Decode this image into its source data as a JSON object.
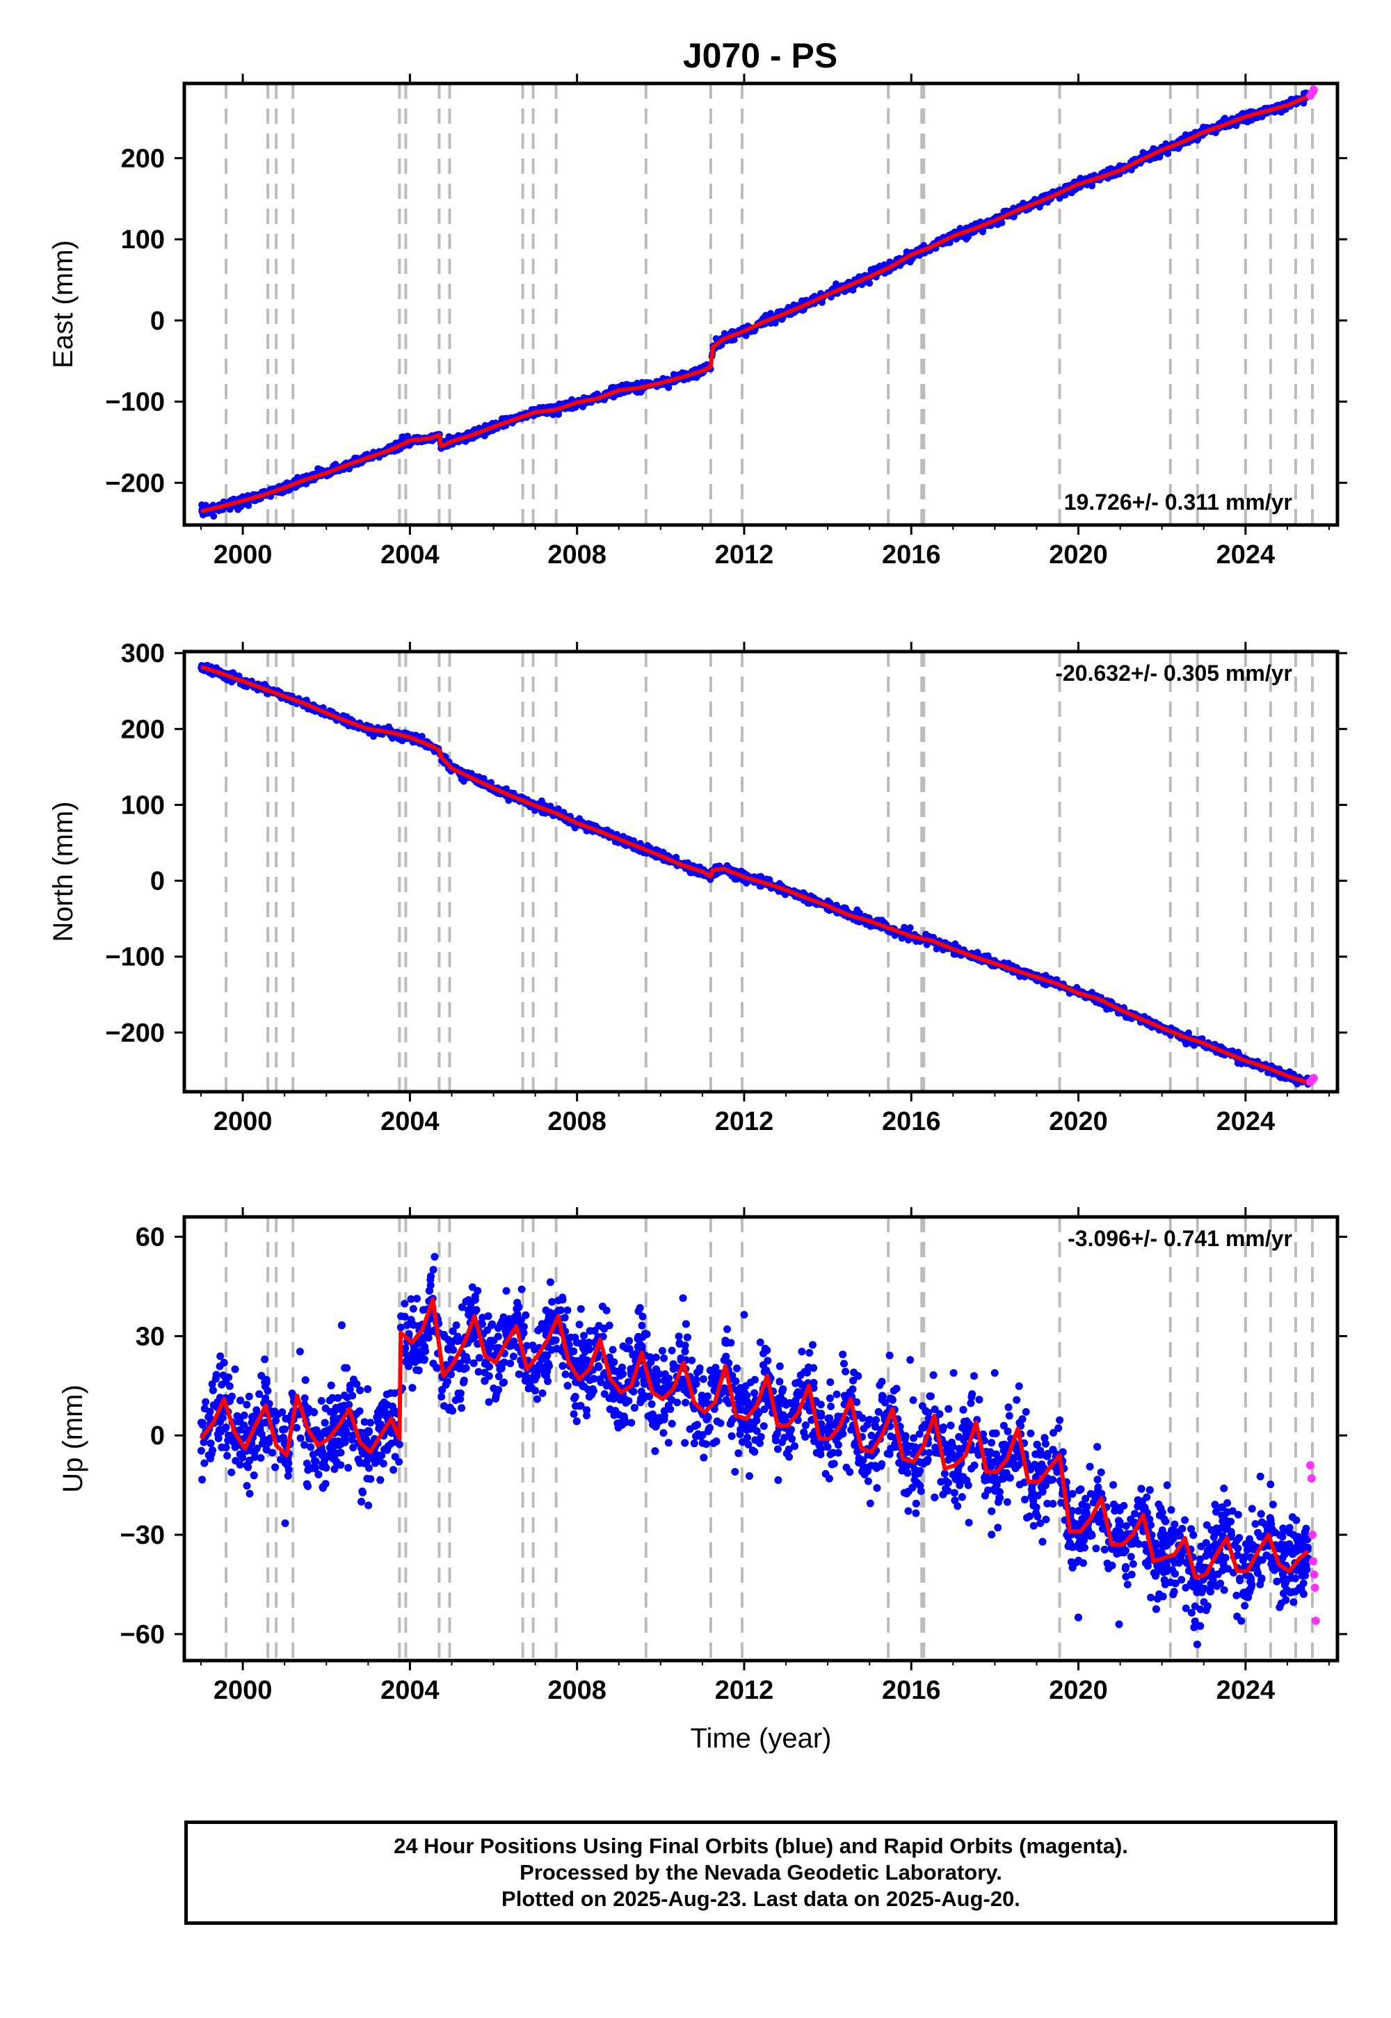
{
  "title": "J070 - PS",
  "colors": {
    "final_orbits": "#0000ff",
    "rapid_orbits": "#ff33ff",
    "model_fit": "#ff0000",
    "event_lines": "#bbbbbb"
  },
  "footer": {
    "line1": "24 Hour Positions Using Final Orbits (blue) and Rapid Orbits (magenta).",
    "line2": "Processed by the Nevada Geodetic Laboratory.",
    "line3": "Plotted on 2025-Aug-23. Last data on 2025-Aug-20."
  },
  "chart_data": [
    {
      "type": "scatter",
      "component": "east",
      "ylabel": "East (mm)",
      "xlabel": "",
      "xlim": [
        1998.6,
        2026.2
      ],
      "ylim": [
        -252,
        292
      ],
      "x_ticks": [
        "2000",
        "2004",
        "2008",
        "2012",
        "2016",
        "2020",
        "2024"
      ],
      "y_ticks": [
        "-200",
        "-100",
        "0",
        "100",
        "200"
      ],
      "rate_text": "19.726+/- 0.311 mm/yr",
      "rate_mm_yr": 19.726,
      "rate_sigma_mm_yr": 0.311,
      "event_lines_year": [
        1999.6,
        2000.6,
        2000.8,
        2001.2,
        2003.75,
        2003.9,
        2004.7,
        2004.95,
        2006.7,
        2006.95,
        2007.5,
        2009.65,
        2011.2,
        2011.95,
        2015.45,
        2016.25,
        2016.3,
        2019.55,
        2022.2,
        2022.85,
        2024.0,
        2024.6,
        2025.2,
        2025.6
      ],
      "series": [
        {
          "name": "",
          "role": "model",
          "x": [
            1999.0,
            1999.5,
            2000.0,
            2000.5,
            2001.0,
            2001.5,
            2002.0,
            2002.5,
            2003.0,
            2003.5,
            2004.0,
            2004.5,
            2004.7,
            2004.75,
            2005.0,
            2005.5,
            2006.0,
            2006.5,
            2007.0,
            2007.5,
            2008.0,
            2008.5,
            2009.0,
            2009.5,
            2010.0,
            2010.5,
            2011.0,
            2011.2,
            2011.25,
            2011.5,
            2012.0,
            2012.5,
            2013.0,
            2013.5,
            2014.0,
            2014.5,
            2015.0,
            2015.5,
            2016.0,
            2016.5,
            2017.0,
            2017.5,
            2018.0,
            2018.5,
            2019.0,
            2019.5,
            2020.0,
            2020.5,
            2021.0,
            2021.5,
            2022.0,
            2022.5,
            2023.0,
            2023.5,
            2024.0,
            2024.5,
            2025.0,
            2025.5
          ],
          "y": [
            -235,
            -229,
            -222,
            -215,
            -206,
            -196,
            -188,
            -178,
            -169,
            -160,
            -148,
            -145,
            -141,
            -155,
            -149,
            -141,
            -131,
            -122,
            -113,
            -110,
            -101,
            -96,
            -86,
            -83,
            -77,
            -70,
            -62,
            -57,
            -33,
            -23,
            -13,
            -1,
            9,
            20,
            32,
            43,
            54,
            66,
            81,
            91,
            104,
            113,
            123,
            135,
            145,
            156,
            168,
            176,
            185,
            198,
            210,
            220,
            232,
            241,
            251,
            258,
            265,
            276
          ]
        },
        {
          "name": "",
          "role": "rapid",
          "x": [
            2025.55,
            2025.6,
            2025.63
          ],
          "y": [
            277,
            281,
            284
          ]
        }
      ]
    },
    {
      "type": "scatter",
      "component": "north",
      "ylabel": "North (mm)",
      "xlabel": "",
      "xlim": [
        1998.6,
        2026.2
      ],
      "ylim": [
        -278,
        302
      ],
      "x_ticks": [
        "2000",
        "2004",
        "2008",
        "2012",
        "2016",
        "2020",
        "2024"
      ],
      "y_ticks": [
        "300",
        "200",
        "100",
        "0",
        "-100",
        "-200"
      ],
      "rate_text": "-20.632+/- 0.305 mm/yr",
      "rate_mm_yr": -20.632,
      "rate_sigma_mm_yr": 0.305,
      "event_lines_year": [
        1999.6,
        2000.6,
        2000.8,
        2001.2,
        2003.75,
        2003.9,
        2004.7,
        2004.95,
        2006.7,
        2006.95,
        2007.5,
        2009.65,
        2011.2,
        2011.95,
        2015.45,
        2016.25,
        2016.3,
        2019.55,
        2022.2,
        2022.85,
        2024.0,
        2024.6,
        2025.2,
        2025.6
      ],
      "series": [
        {
          "name": "",
          "role": "model",
          "x": [
            1999.0,
            1999.5,
            2000.0,
            2000.5,
            2001.0,
            2001.5,
            2002.0,
            2002.5,
            2003.0,
            2003.5,
            2004.0,
            2004.5,
            2004.7,
            2004.75,
            2005.0,
            2005.5,
            2006.0,
            2006.5,
            2007.0,
            2007.5,
            2008.0,
            2008.5,
            2009.0,
            2009.5,
            2010.0,
            2010.5,
            2011.0,
            2011.2,
            2011.25,
            2011.5,
            2012.0,
            2012.5,
            2013.0,
            2013.5,
            2014.0,
            2014.5,
            2015.0,
            2015.5,
            2016.0,
            2016.5,
            2017.0,
            2017.5,
            2018.0,
            2018.5,
            2019.0,
            2019.5,
            2020.0,
            2020.5,
            2021.0,
            2021.5,
            2022.0,
            2022.5,
            2023.0,
            2023.5,
            2024.0,
            2024.5,
            2025.0,
            2025.5
          ],
          "y": [
            282,
            273,
            263,
            253,
            243,
            233,
            221,
            210,
            200,
            196,
            189,
            178,
            172,
            163,
            148,
            135,
            122,
            110,
            99,
            89,
            76,
            66,
            55,
            44,
            33,
            21,
            12,
            6,
            14,
            16,
            5,
            -3,
            -12,
            -23,
            -33,
            -45,
            -53,
            -63,
            -73,
            -79,
            -90,
            -100,
            -109,
            -118,
            -127,
            -136,
            -148,
            -156,
            -170,
            -182,
            -194,
            -205,
            -214,
            -226,
            -237,
            -246,
            -257,
            -266
          ]
        },
        {
          "name": "",
          "role": "rapid",
          "x": [
            2025.55,
            2025.6,
            2025.63
          ],
          "y": [
            -265,
            -262,
            -260
          ]
        }
      ]
    },
    {
      "type": "scatter",
      "component": "up",
      "ylabel": "Up (mm)",
      "xlabel": "Time (year)",
      "xlim": [
        1998.6,
        2026.2
      ],
      "ylim": [
        -68,
        66
      ],
      "x_ticks": [
        "2000",
        "2004",
        "2008",
        "2012",
        "2016",
        "2020",
        "2024"
      ],
      "y_ticks": [
        "60",
        "30",
        "0",
        "-30",
        "-60"
      ],
      "rate_text": "-3.096+/- 0.741 mm/yr",
      "rate_mm_yr": -3.096,
      "rate_sigma_mm_yr": 0.741,
      "event_lines_year": [
        1999.6,
        2000.6,
        2000.8,
        2001.2,
        2003.75,
        2003.9,
        2004.7,
        2004.95,
        2006.7,
        2006.95,
        2007.5,
        2009.65,
        2011.2,
        2011.95,
        2015.45,
        2016.25,
        2016.3,
        2019.55,
        2022.2,
        2022.85,
        2024.0,
        2024.6,
        2025.2,
        2025.6
      ],
      "series": [
        {
          "name": "",
          "role": "model",
          "x": [
            1999.0,
            1999.3,
            1999.55,
            1999.8,
            2000.05,
            2000.3,
            2000.55,
            2000.8,
            2001.05,
            2001.3,
            2001.55,
            2001.8,
            2002.05,
            2002.3,
            2002.55,
            2002.8,
            2003.05,
            2003.3,
            2003.55,
            2003.75,
            2003.78,
            2004.05,
            2004.3,
            2004.55,
            2004.8,
            2005.05,
            2005.3,
            2005.55,
            2005.8,
            2006.05,
            2006.3,
            2006.55,
            2006.8,
            2007.05,
            2007.3,
            2007.55,
            2007.8,
            2008.05,
            2008.3,
            2008.55,
            2008.8,
            2009.05,
            2009.3,
            2009.55,
            2009.8,
            2010.05,
            2010.3,
            2010.55,
            2010.8,
            2011.05,
            2011.3,
            2011.55,
            2011.8,
            2012.05,
            2012.3,
            2012.55,
            2012.8,
            2013.05,
            2013.3,
            2013.55,
            2013.8,
            2014.05,
            2014.3,
            2014.55,
            2014.8,
            2015.05,
            2015.3,
            2015.55,
            2015.8,
            2016.05,
            2016.3,
            2016.55,
            2016.8,
            2017.05,
            2017.3,
            2017.55,
            2017.8,
            2018.05,
            2018.3,
            2018.55,
            2018.8,
            2019.05,
            2019.3,
            2019.55,
            2019.8,
            2020.05,
            2020.3,
            2020.55,
            2020.8,
            2021.05,
            2021.3,
            2021.55,
            2021.8,
            2022.05,
            2022.3,
            2022.55,
            2022.8,
            2023.05,
            2023.3,
            2023.55,
            2023.8,
            2024.05,
            2024.3,
            2024.55,
            2024.8,
            2025.05,
            2025.3,
            2025.5
          ],
          "y": [
            -1,
            4,
            11,
            1,
            -4,
            3,
            9,
            -3,
            -6,
            12,
            2,
            -3,
            -1,
            3,
            8,
            -2,
            -5,
            0,
            5,
            -1,
            31,
            28,
            32,
            41,
            18,
            22,
            28,
            36,
            24,
            22,
            28,
            33,
            20,
            24,
            29,
            36,
            22,
            17,
            20,
            29,
            17,
            13,
            15,
            25,
            13,
            11,
            14,
            22,
            10,
            7,
            10,
            21,
            6,
            5,
            9,
            18,
            3,
            3,
            7,
            15,
            -1,
            -1,
            3,
            11,
            -4,
            -5,
            0,
            8,
            -7,
            -8,
            -3,
            6,
            -10,
            -9,
            -6,
            4,
            -11,
            -11,
            -7,
            2,
            -14,
            -14,
            -10,
            -6,
            -29,
            -29,
            -25,
            -19,
            -33,
            -33,
            -30,
            -24,
            -38,
            -37,
            -36,
            -31,
            -43,
            -42,
            -36,
            -31,
            -41,
            -41,
            -35,
            -30,
            -39,
            -41,
            -37,
            -35
          ]
        },
        {
          "name": "",
          "role": "rapid",
          "x": [
            2025.55,
            2025.58,
            2025.6,
            2025.62,
            2025.64,
            2025.66,
            2025.68
          ],
          "y": [
            -9,
            -13,
            -30,
            -38,
            -42,
            -46,
            -56
          ]
        }
      ]
    }
  ]
}
